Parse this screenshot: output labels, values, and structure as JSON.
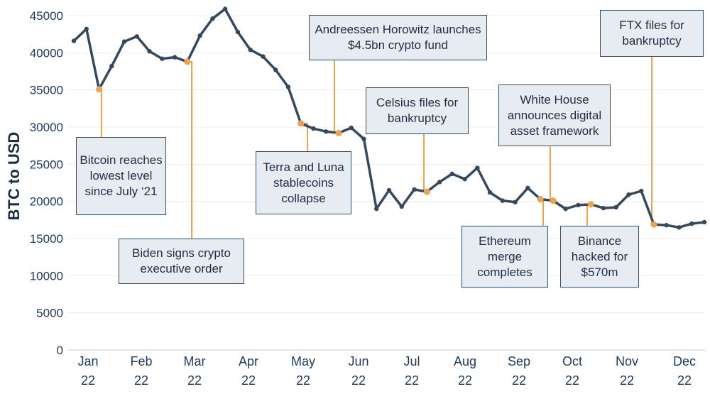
{
  "chart_data": {
    "type": "line",
    "ylabel": "BTC  to USD",
    "xlabel": "",
    "ylim": [
      0,
      45000
    ],
    "yticks": [
      0,
      5000,
      10000,
      15000,
      20000,
      25000,
      30000,
      35000,
      40000,
      45000
    ],
    "grid": true,
    "x_tick_labels": [
      {
        "month": "Jan",
        "year": "22"
      },
      {
        "month": "Feb",
        "year": "22"
      },
      {
        "month": "Mar",
        "year": "22"
      },
      {
        "month": "Apr",
        "year": "22"
      },
      {
        "month": "May",
        "year": "22"
      },
      {
        "month": "Jun",
        "year": "22"
      },
      {
        "month": "Jul",
        "year": "22"
      },
      {
        "month": "Aug",
        "year": "22"
      },
      {
        "month": "Sep",
        "year": "22"
      },
      {
        "month": "Oct",
        "year": "22"
      },
      {
        "month": "Nov",
        "year": "22"
      },
      {
        "month": "Dec",
        "year": "22"
      }
    ],
    "series": [
      {
        "values": [
          41600,
          43200,
          35100,
          38200,
          41500,
          42200,
          40200,
          39200,
          39400,
          38800,
          42300,
          44600,
          45900,
          42800,
          40400,
          39500,
          37700,
          35400,
          30500,
          29800,
          29400,
          29200,
          29900,
          28400,
          19000,
          21500,
          19300,
          21600,
          21300,
          22600,
          23700,
          23000,
          24500,
          21200,
          20100,
          19900,
          21800,
          20300,
          20100,
          19000,
          19500,
          19600,
          19100,
          19200,
          20900,
          21400,
          16900,
          16800,
          16500,
          17000,
          17200
        ],
        "color": "#34495e"
      }
    ],
    "events": [
      {
        "label": "Bitcoin reaches lowest level since July ‘21",
        "point_index": 2
      },
      {
        "label": "Biden signs crypto executive order",
        "point_index": 9
      },
      {
        "label": "Terra and Luna stablecoins collapse",
        "point_index": 18
      },
      {
        "label": "Andreessen Horowitz launches $4.5bn crypto fund",
        "point_index": 21
      },
      {
        "label": "Celsius files for bankruptcy",
        "point_index": 28
      },
      {
        "label": "White House announces digital asset framework",
        "point_index": 38
      },
      {
        "label": "Ethereum merge completes",
        "point_index": 37
      },
      {
        "label": "Binance hacked for $570m",
        "point_index": 41
      },
      {
        "label": "FTX files for bankruptcy",
        "point_index": 46
      }
    ],
    "colors": {
      "line": "#34495e",
      "marker": "#f0a14a",
      "box_fill": "#e6ecf2",
      "box_border": "#2f4e7a",
      "text": "#1f3b63"
    }
  }
}
